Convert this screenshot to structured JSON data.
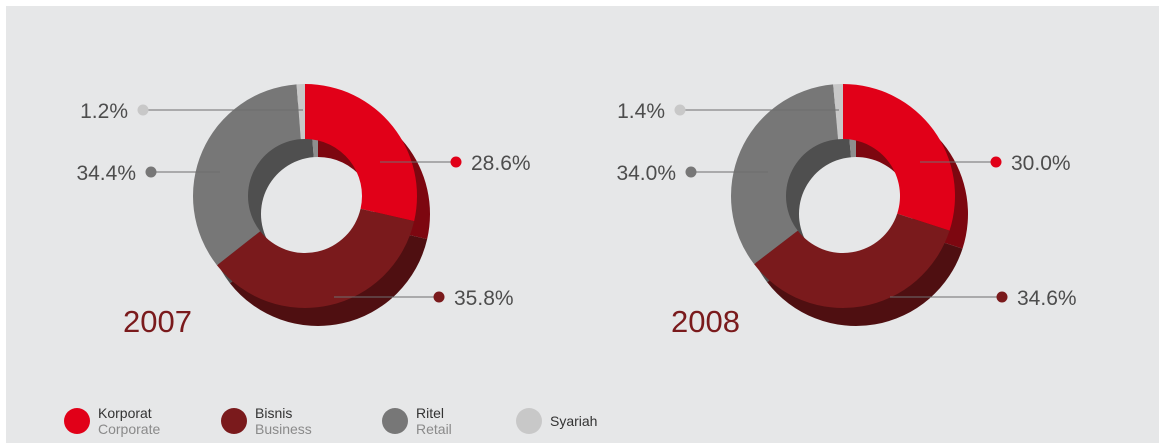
{
  "colors": {
    "Corporate": "#e10018",
    "Business": "#7a1a1c",
    "Retail": "#777777",
    "Syariah": "#c8c8c8"
  },
  "chart_data": [
    {
      "type": "pie",
      "subtype": "donut",
      "year": "2007",
      "slices": [
        {
          "segment": "Corporate",
          "value": 28.6,
          "label": "28.6%"
        },
        {
          "segment": "Business",
          "value": 35.8,
          "label": "35.8%"
        },
        {
          "segment": "Retail",
          "value": 34.4,
          "label": "34.4%"
        },
        {
          "segment": "Syariah",
          "value": 1.2,
          "label": "1.2%"
        }
      ]
    },
    {
      "type": "pie",
      "subtype": "donut",
      "year": "2008",
      "slices": [
        {
          "segment": "Corporate",
          "value": 30.0,
          "label": "30.0%"
        },
        {
          "segment": "Business",
          "value": 34.6,
          "label": "34.6%"
        },
        {
          "segment": "Retail",
          "value": 34.0,
          "label": "34.0%"
        },
        {
          "segment": "Syariah",
          "value": 1.4,
          "label": "1.4%"
        }
      ]
    }
  ],
  "legend": [
    {
      "segment": "Corporate",
      "primary": "Korporat",
      "secondary": "Corporate"
    },
    {
      "segment": "Business",
      "primary": "Bisnis",
      "secondary": "Business"
    },
    {
      "segment": "Retail",
      "primary": "Ritel",
      "secondary": "Retail"
    },
    {
      "segment": "Syariah",
      "primary": "Syariah",
      "secondary": ""
    }
  ]
}
